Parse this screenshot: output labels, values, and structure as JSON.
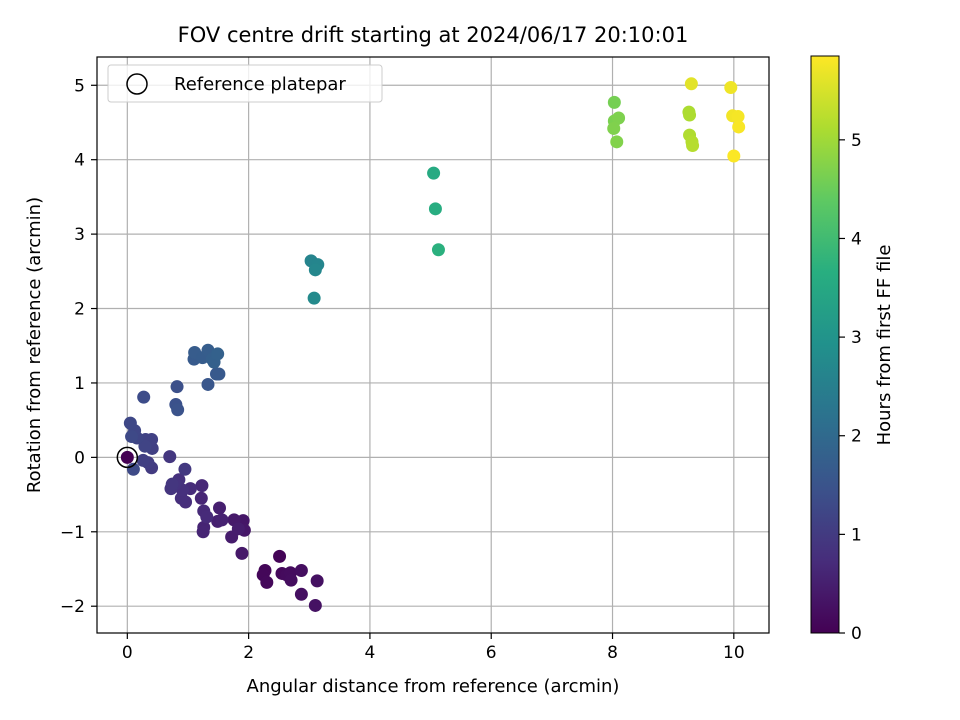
{
  "chart_data": {
    "type": "scatter",
    "title": "FOV centre drift starting at 2024/06/17 20:10:01",
    "xlabel": "Angular distance from reference (arcmin)",
    "ylabel": "Rotation from reference (arcmin)",
    "xlim": [
      -0.5,
      10.58
    ],
    "ylim": [
      -2.36,
      5.38
    ],
    "xticks": [
      0,
      2,
      4,
      6,
      8,
      10
    ],
    "yticks": [
      -2,
      -1,
      0,
      1,
      2,
      3,
      4,
      5
    ],
    "xtick_labels": [
      "0",
      "2",
      "4",
      "6",
      "8",
      "10"
    ],
    "ytick_labels": [
      "−2",
      "−1",
      "0",
      "1",
      "2",
      "3",
      "4",
      "5"
    ],
    "grid": true,
    "colormap": "viridis",
    "colorbar": {
      "label": "Hours from first FF file",
      "range": [
        0,
        5.85
      ],
      "ticks": [
        0,
        1,
        2,
        3,
        4,
        5
      ],
      "tick_labels": [
        "0",
        "1",
        "2",
        "3",
        "4",
        "5"
      ]
    },
    "legend": {
      "placement": "top-left",
      "entries": [
        "Reference platepar"
      ]
    },
    "reference_point": {
      "x": 0,
      "y": 0
    },
    "points": [
      {
        "x": 0.0,
        "y": 0.0,
        "hours": 0.0
      },
      {
        "x": 2.51,
        "y": -1.33,
        "hours": 0.05
      },
      {
        "x": 2.27,
        "y": -1.52,
        "hours": 0.08
      },
      {
        "x": 2.24,
        "y": -1.58,
        "hours": 0.1
      },
      {
        "x": 2.3,
        "y": -1.68,
        "hours": 0.12
      },
      {
        "x": 2.55,
        "y": -1.56,
        "hours": 0.14
      },
      {
        "x": 2.63,
        "y": -1.58,
        "hours": 0.16
      },
      {
        "x": 2.69,
        "y": -1.55,
        "hours": 0.18
      },
      {
        "x": 2.7,
        "y": -1.65,
        "hours": 0.2
      },
      {
        "x": 2.87,
        "y": -1.52,
        "hours": 0.22
      },
      {
        "x": 2.87,
        "y": -1.84,
        "hours": 0.24
      },
      {
        "x": 3.13,
        "y": -1.66,
        "hours": 0.26
      },
      {
        "x": 3.1,
        "y": -1.99,
        "hours": 0.28
      },
      {
        "x": 1.91,
        "y": -0.85,
        "hours": 0.35
      },
      {
        "x": 1.93,
        "y": -0.98,
        "hours": 0.37
      },
      {
        "x": 1.89,
        "y": -1.29,
        "hours": 0.4
      },
      {
        "x": 1.76,
        "y": -0.84,
        "hours": 0.42
      },
      {
        "x": 1.72,
        "y": -1.07,
        "hours": 0.45
      },
      {
        "x": 1.83,
        "y": -0.96,
        "hours": 0.47
      },
      {
        "x": 1.52,
        "y": -0.68,
        "hours": 0.5
      },
      {
        "x": 1.49,
        "y": -0.86,
        "hours": 0.52
      },
      {
        "x": 1.56,
        "y": -0.84,
        "hours": 0.55
      },
      {
        "x": 1.26,
        "y": -0.94,
        "hours": 0.58
      },
      {
        "x": 1.25,
        "y": -1.0,
        "hours": 0.6
      },
      {
        "x": 1.22,
        "y": -0.55,
        "hours": 0.62
      },
      {
        "x": 1.23,
        "y": -0.38,
        "hours": 0.65
      },
      {
        "x": 1.26,
        "y": -0.72,
        "hours": 0.68
      },
      {
        "x": 1.31,
        "y": -0.8,
        "hours": 0.7
      },
      {
        "x": 1.04,
        "y": -0.42,
        "hours": 0.72
      },
      {
        "x": 0.96,
        "y": -0.6,
        "hours": 0.75
      },
      {
        "x": 0.89,
        "y": -0.55,
        "hours": 0.78
      },
      {
        "x": 0.91,
        "y": -0.44,
        "hours": 0.8
      },
      {
        "x": 0.85,
        "y": -0.3,
        "hours": 0.82
      },
      {
        "x": 0.79,
        "y": -0.36,
        "hours": 0.85
      },
      {
        "x": 0.72,
        "y": -0.42,
        "hours": 0.88
      },
      {
        "x": 0.74,
        "y": -0.36,
        "hours": 0.9
      },
      {
        "x": 0.7,
        "y": 0.01,
        "hours": 0.92
      },
      {
        "x": 0.95,
        "y": -0.16,
        "hours": 0.95
      },
      {
        "x": 0.4,
        "y": -0.14,
        "hours": 1.0
      },
      {
        "x": 0.34,
        "y": -0.07,
        "hours": 1.05
      },
      {
        "x": 0.26,
        "y": -0.04,
        "hours": 1.08
      },
      {
        "x": 0.41,
        "y": 0.12,
        "hours": 1.1
      },
      {
        "x": 0.4,
        "y": 0.24,
        "hours": 1.12
      },
      {
        "x": 0.3,
        "y": 0.24,
        "hours": 1.15
      },
      {
        "x": 0.29,
        "y": 0.15,
        "hours": 1.18
      },
      {
        "x": 0.16,
        "y": 0.26,
        "hours": 1.2
      },
      {
        "x": 0.12,
        "y": 0.36,
        "hours": 1.22
      },
      {
        "x": 0.05,
        "y": 0.46,
        "hours": 1.25
      },
      {
        "x": 0.07,
        "y": 0.28,
        "hours": 1.28
      },
      {
        "x": 0.1,
        "y": -0.16,
        "hours": 1.3
      },
      {
        "x": 0.27,
        "y": 0.81,
        "hours": 1.35
      },
      {
        "x": 0.82,
        "y": 0.95,
        "hours": 1.42
      },
      {
        "x": 0.8,
        "y": 0.71,
        "hours": 1.45
      },
      {
        "x": 0.83,
        "y": 0.64,
        "hours": 1.48
      },
      {
        "x": 1.33,
        "y": 0.98,
        "hours": 1.55
      },
      {
        "x": 1.47,
        "y": 1.12,
        "hours": 1.6
      },
      {
        "x": 1.51,
        "y": 1.12,
        "hours": 1.62
      },
      {
        "x": 1.1,
        "y": 1.32,
        "hours": 1.65
      },
      {
        "x": 1.11,
        "y": 1.41,
        "hours": 1.68
      },
      {
        "x": 1.24,
        "y": 1.34,
        "hours": 1.7
      },
      {
        "x": 1.33,
        "y": 1.44,
        "hours": 1.72
      },
      {
        "x": 1.4,
        "y": 1.32,
        "hours": 1.75
      },
      {
        "x": 1.43,
        "y": 1.28,
        "hours": 1.78
      },
      {
        "x": 1.49,
        "y": 1.39,
        "hours": 1.8
      },
      {
        "x": 3.03,
        "y": 2.64,
        "hours": 2.62
      },
      {
        "x": 3.14,
        "y": 2.59,
        "hours": 2.65
      },
      {
        "x": 3.1,
        "y": 2.52,
        "hours": 2.68
      },
      {
        "x": 3.08,
        "y": 2.14,
        "hours": 2.75
      },
      {
        "x": 5.05,
        "y": 3.82,
        "hours": 3.55
      },
      {
        "x": 5.08,
        "y": 3.34,
        "hours": 3.62
      },
      {
        "x": 5.13,
        "y": 2.79,
        "hours": 3.7
      },
      {
        "x": 8.03,
        "y": 4.77,
        "hours": 4.6
      },
      {
        "x": 8.03,
        "y": 4.52,
        "hours": 4.65
      },
      {
        "x": 8.1,
        "y": 4.56,
        "hours": 4.68
      },
      {
        "x": 8.02,
        "y": 4.42,
        "hours": 4.7
      },
      {
        "x": 8.07,
        "y": 4.24,
        "hours": 4.72
      },
      {
        "x": 9.26,
        "y": 4.64,
        "hours": 5.1
      },
      {
        "x": 9.27,
        "y": 4.6,
        "hours": 5.12
      },
      {
        "x": 9.27,
        "y": 4.33,
        "hours": 5.15
      },
      {
        "x": 9.31,
        "y": 4.24,
        "hours": 5.18
      },
      {
        "x": 9.32,
        "y": 4.19,
        "hours": 5.2
      },
      {
        "x": 9.3,
        "y": 5.02,
        "hours": 5.6
      },
      {
        "x": 9.95,
        "y": 4.97,
        "hours": 5.72
      },
      {
        "x": 9.98,
        "y": 4.59,
        "hours": 5.75
      },
      {
        "x": 10.07,
        "y": 4.58,
        "hours": 5.78
      },
      {
        "x": 10.08,
        "y": 4.44,
        "hours": 5.8
      },
      {
        "x": 10.0,
        "y": 4.05,
        "hours": 5.83
      }
    ]
  }
}
